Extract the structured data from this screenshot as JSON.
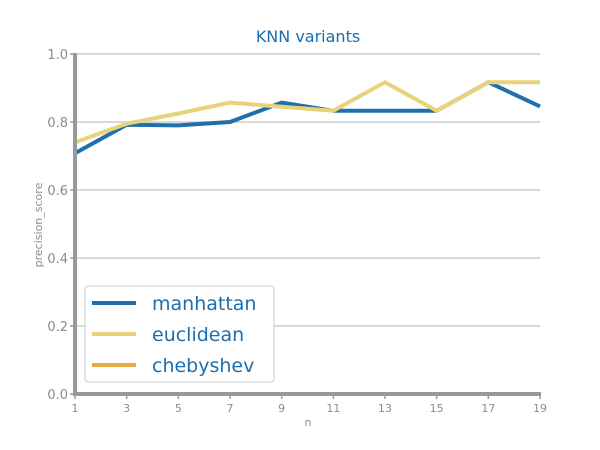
{
  "chart_data": {
    "type": "line",
    "title": "KNN variants",
    "xlabel": "n",
    "ylabel": "precision_score",
    "x": [
      1,
      3,
      5,
      7,
      9,
      11,
      13,
      15,
      17,
      19
    ],
    "xlim": [
      1,
      19
    ],
    "ylim": [
      0.0,
      1.0
    ],
    "yticks": [
      "0.0",
      "0.2",
      "0.4",
      "0.6",
      "0.8",
      "1.0"
    ],
    "xticks": [
      "1",
      "3",
      "5",
      "7",
      "9",
      "11",
      "13",
      "15",
      "17",
      "19"
    ],
    "grid": "horizontal",
    "legend_position": "lower-left",
    "series": [
      {
        "name": "manhattan",
        "color": "#1f6fad",
        "values": [
          0.708,
          0.792,
          0.79,
          0.8,
          0.857,
          0.833,
          0.833,
          0.833,
          0.917,
          0.846
        ]
      },
      {
        "name": "euclidean",
        "color": "#e8d27a",
        "values": [
          0.74,
          0.795,
          0.825,
          0.857,
          0.845,
          0.833,
          0.917,
          0.833,
          0.917,
          0.917
        ]
      },
      {
        "name": "chebyshev",
        "color": "#e8a845",
        "values": [
          null,
          null,
          null,
          null,
          null,
          null,
          null,
          null,
          null,
          null
        ]
      }
    ]
  }
}
